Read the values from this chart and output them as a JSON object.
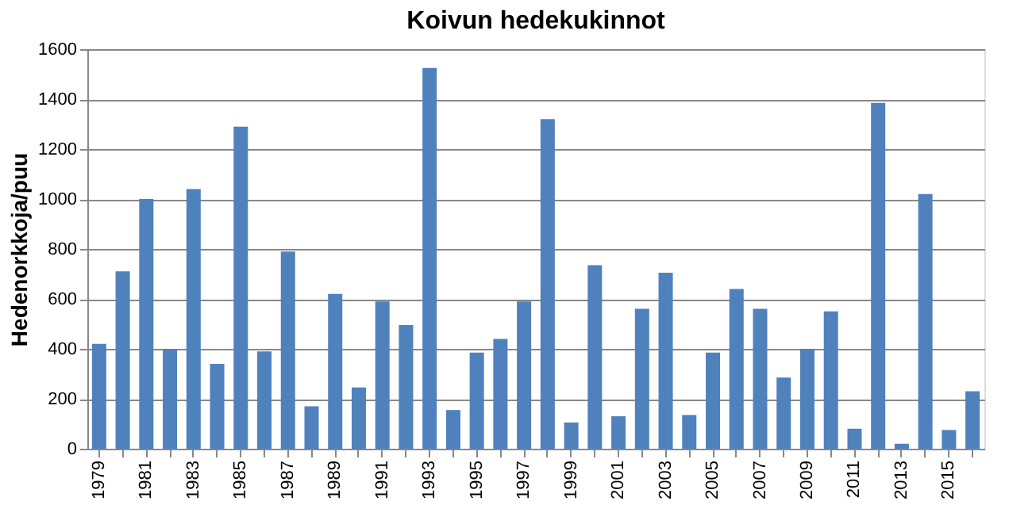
{
  "chart_data": {
    "type": "bar",
    "title": "Koivun hedekukinnot",
    "ylabel": "Hedenorkkoja/puu",
    "categories": [
      "1979",
      null,
      "1981",
      null,
      "1983",
      null,
      "1985",
      null,
      "1987",
      null,
      "1989",
      null,
      "1991",
      null,
      "1993",
      null,
      "1995",
      null,
      "1997",
      null,
      "1999",
      null,
      "2001",
      null,
      "2003",
      null,
      "2005",
      null,
      "2007",
      null,
      "2009",
      null,
      "2011",
      null,
      "2013",
      null,
      "2015",
      null
    ],
    "values": [
      420,
      710,
      1000,
      400,
      1040,
      340,
      1290,
      390,
      790,
      170,
      620,
      245,
      590,
      495,
      1525,
      155,
      385,
      440,
      590,
      1320,
      105,
      735,
      130,
      560,
      705,
      135,
      385,
      640,
      560,
      285,
      400,
      550,
      80,
      1385,
      20,
      1020,
      75,
      230
    ],
    "color": "#4f81bd",
    "ylim": [
      0,
      1600
    ],
    "yticks": [
      0,
      200,
      400,
      600,
      800,
      1000,
      1200,
      1400,
      1600
    ],
    "grid": "y"
  }
}
